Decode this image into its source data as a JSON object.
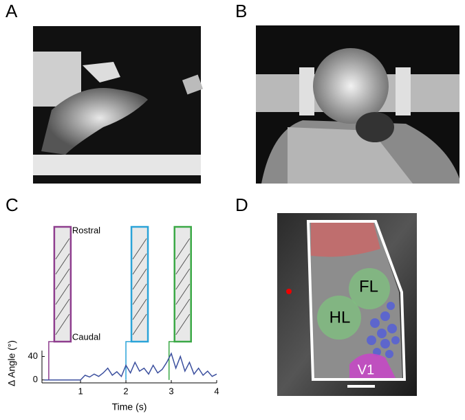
{
  "panels": {
    "a": "A",
    "b": "B",
    "c": "C",
    "d": "D"
  },
  "chart_data": {
    "type": "line",
    "xlabel": "Time (s)",
    "ylabel": "Δ Angle (°)",
    "annotations": {
      "top": "Rostral",
      "bottom": "Caudal"
    },
    "x": [
      0.2,
      0.3,
      0.4,
      0.5,
      0.6,
      0.7,
      0.8,
      0.9,
      1.0,
      1.1,
      1.2,
      1.3,
      1.4,
      1.5,
      1.6,
      1.7,
      1.8,
      1.9,
      2.0,
      2.1,
      2.2,
      2.3,
      2.4,
      2.5,
      2.6,
      2.7,
      2.8,
      2.9,
      3.0,
      3.1,
      3.2,
      3.3,
      3.4,
      3.5,
      3.6,
      3.7,
      3.8,
      3.9,
      4.0
    ],
    "series": [
      {
        "color": "#3b4f9e",
        "values": [
          0,
          0,
          0,
          0,
          0,
          0,
          0,
          0,
          0,
          8,
          5,
          10,
          6,
          12,
          20,
          8,
          14,
          6,
          25,
          12,
          30,
          15,
          20,
          10,
          25,
          12,
          18,
          30,
          45,
          20,
          40,
          15,
          30,
          10,
          20,
          8,
          15,
          6,
          10
        ]
      }
    ],
    "markers": [
      {
        "x": 0.3,
        "color": "#8e3d8e"
      },
      {
        "x": 2.0,
        "color": "#2aa3d8"
      },
      {
        "x": 2.95,
        "color": "#3aa845"
      }
    ],
    "xlim": [
      0.15,
      4
    ],
    "ylim": [
      -5,
      50
    ],
    "xticks": [
      1,
      2,
      3,
      4
    ],
    "yticks": [
      0,
      40
    ]
  },
  "panel_d": {
    "labels": [
      "FL",
      "HL",
      "V1"
    ]
  }
}
